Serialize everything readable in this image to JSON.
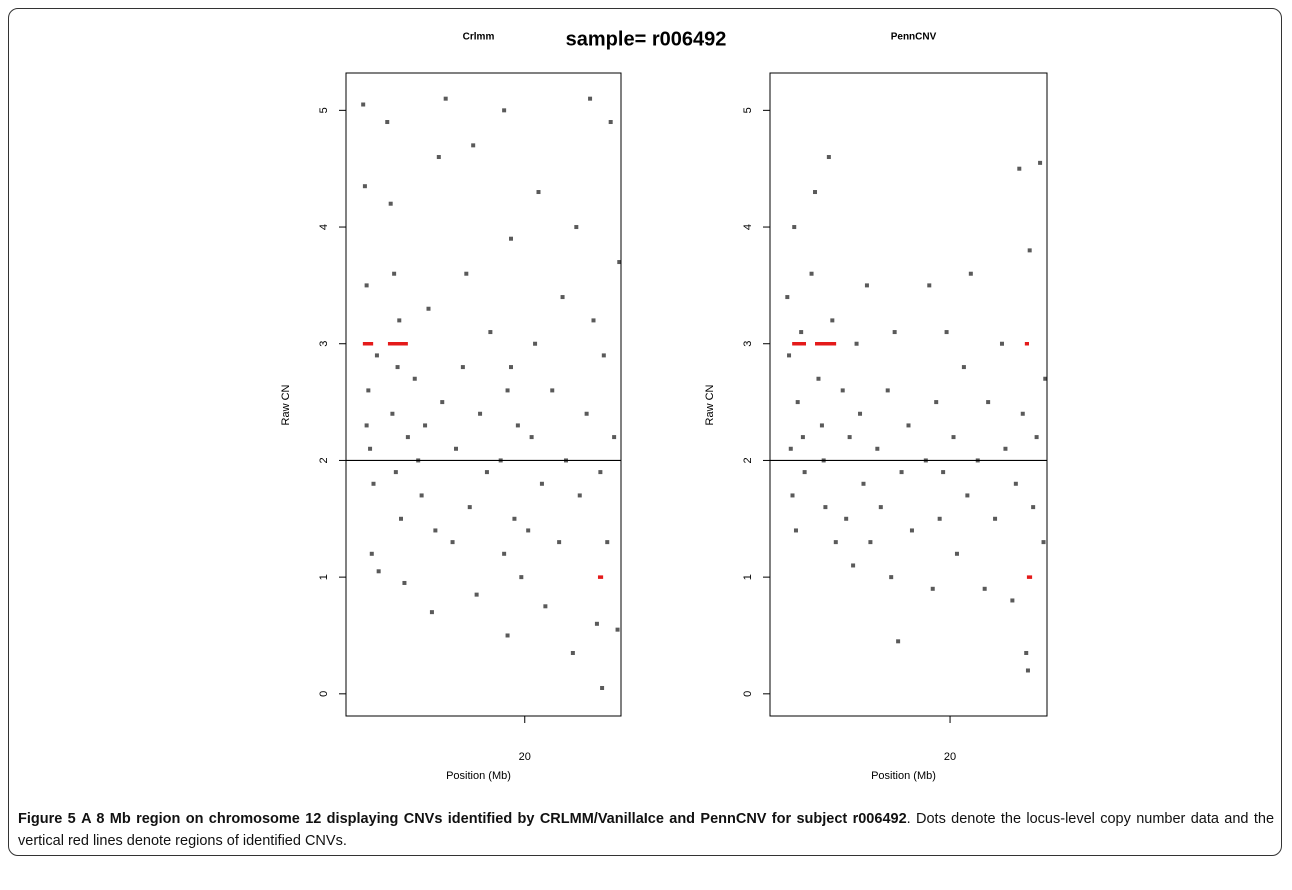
{
  "suptitle": "sample= r006492",
  "chart_data": [
    {
      "type": "scatter",
      "title": "Crlmm",
      "xlabel": "Position (Mb)",
      "ylabel": "Raw CN",
      "xlim": [
        14.8,
        22.8
      ],
      "ylim": [
        -0.19,
        5.32
      ],
      "xticks": [
        20
      ],
      "yticks": [
        0,
        1,
        2,
        3,
        4,
        5
      ],
      "hline": 2,
      "series": [
        {
          "color": "#5a5a5a",
          "x": [
            15.3,
            15.35,
            15.4,
            15.45,
            15.5,
            15.55,
            15.6,
            15.7,
            15.75,
            15.4,
            16.0,
            16.1,
            16.2,
            16.3,
            16.15,
            16.25,
            16.4,
            16.5,
            16.6,
            16.35,
            16.8,
            17.0,
            17.1,
            17.3,
            17.2,
            17.5,
            17.4,
            16.9,
            17.6,
            17.7,
            17.9,
            18.0,
            18.2,
            18.3,
            18.4,
            18.5,
            18.6,
            18.7,
            18.9,
            19.0,
            19.3,
            19.4,
            19.5,
            19.6,
            19.5,
            19.7,
            19.8,
            19.4,
            19.9,
            19.6,
            20.1,
            20.2,
            20.3,
            20.5,
            20.4,
            20.6,
            20.8,
            21.0,
            21.1,
            21.2,
            21.4,
            21.5,
            21.6,
            21.8,
            21.9,
            22.0,
            22.1,
            22.2,
            22.25,
            22.3,
            22.4,
            22.5,
            22.6,
            22.7,
            22.75
          ],
          "values": [
            5.05,
            4.35,
            3.5,
            2.6,
            2.1,
            1.2,
            1.8,
            2.9,
            1.05,
            2.3,
            4.9,
            4.2,
            3.6,
            2.8,
            2.4,
            1.9,
            1.5,
            0.95,
            2.2,
            3.2,
            2.7,
            1.7,
            2.3,
            0.7,
            3.3,
            4.6,
            1.4,
            2.0,
            2.5,
            5.1,
            1.3,
            2.1,
            2.8,
            3.6,
            1.6,
            4.7,
            0.85,
            2.4,
            1.9,
            3.1,
            2.0,
            1.2,
            2.6,
            3.9,
            0.5,
            1.5,
            2.3,
            5.0,
            1.0,
            2.8,
            1.4,
            2.2,
            3.0,
            1.8,
            4.3,
            0.75,
            2.6,
            1.3,
            3.4,
            2.0,
            0.35,
            4.0,
            1.7,
            2.4,
            5.1,
            3.2,
            0.6,
            1.9,
            0.05,
            2.9,
            1.3,
            4.9,
            2.2,
            0.55,
            3.7
          ]
        }
      ],
      "cnv_calls": {
        "color": "#e41a1a",
        "x_start": [
          15.29,
          16.02,
          22.13
        ],
        "x_end": [
          15.59,
          16.6,
          22.28
        ],
        "values": [
          3,
          3,
          1
        ]
      }
    },
    {
      "type": "scatter",
      "title": "PennCNV",
      "xlabel": "Position (Mb)",
      "ylabel": "Raw CN",
      "xlim": [
        14.8,
        22.8
      ],
      "ylim": [
        -0.19,
        5.32
      ],
      "xticks": [
        20
      ],
      "yticks": [
        0,
        1,
        2,
        3,
        4,
        5
      ],
      "hline": 2,
      "series": [
        {
          "color": "#5a5a5a",
          "x": [
            15.3,
            15.35,
            15.4,
            15.45,
            15.5,
            15.55,
            15.6,
            15.7,
            15.75,
            15.8,
            16.0,
            16.1,
            16.2,
            16.3,
            16.4,
            16.5,
            16.6,
            16.7,
            16.35,
            16.9,
            17.0,
            17.1,
            17.3,
            17.2,
            17.4,
            17.5,
            17.6,
            17.7,
            17.9,
            18.0,
            18.2,
            18.3,
            18.4,
            18.5,
            18.6,
            18.8,
            18.9,
            19.3,
            19.4,
            19.5,
            19.6,
            19.7,
            19.8,
            19.9,
            20.1,
            20.2,
            20.4,
            20.5,
            20.6,
            20.8,
            21.0,
            21.1,
            21.3,
            21.5,
            21.6,
            21.8,
            21.9,
            22.0,
            22.1,
            22.2,
            22.25,
            22.3,
            22.4,
            22.5,
            22.6,
            22.7,
            22.75
          ],
          "values": [
            3.4,
            2.9,
            2.1,
            1.7,
            4.0,
            1.4,
            2.5,
            3.1,
            2.2,
            1.9,
            3.6,
            4.3,
            2.7,
            2.3,
            1.6,
            4.6,
            3.2,
            1.3,
            2.0,
            2.6,
            1.5,
            2.2,
            3.0,
            1.1,
            2.4,
            1.8,
            3.5,
            1.3,
            2.1,
            1.6,
            2.6,
            1.0,
            3.1,
            0.45,
            1.9,
            2.3,
            1.4,
            2.0,
            3.5,
            0.9,
            2.5,
            1.5,
            1.9,
            3.1,
            2.2,
            1.2,
            2.8,
            1.7,
            3.6,
            2.0,
            0.9,
            2.5,
            1.5,
            3.0,
            2.1,
            0.8,
            1.8,
            4.5,
            2.4,
            0.35,
            0.2,
            3.8,
            1.6,
            2.2,
            4.55,
            1.3,
            2.7
          ]
        }
      ],
      "cnv_calls": {
        "color": "#e41a1a",
        "x_start": [
          15.44,
          16.1,
          22.16,
          22.22
        ],
        "x_end": [
          15.84,
          16.71,
          22.28,
          22.37
        ],
        "values": [
          3,
          3,
          3,
          1
        ]
      }
    }
  ],
  "caption": {
    "label": "Figure 5",
    "bold_text": "A 8 Mb region on chromosome 12 displaying CNVs identified by CRLMM/VanillaIce and PennCNV for subject r006492",
    "text": ". Dots denote the locus-level copy number data and the vertical red lines denote regions of identified CNVs."
  }
}
